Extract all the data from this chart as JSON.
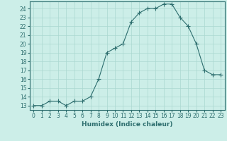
{
  "x": [
    0,
    1,
    2,
    3,
    4,
    5,
    6,
    7,
    8,
    9,
    10,
    11,
    12,
    13,
    14,
    15,
    16,
    17,
    18,
    19,
    20,
    21,
    22,
    23
  ],
  "y": [
    13,
    13,
    13.5,
    13.5,
    13,
    13.5,
    13.5,
    14,
    16,
    19,
    19.5,
    20,
    22.5,
    23.5,
    24,
    24,
    24.5,
    24.5,
    23,
    22,
    20,
    17,
    16.5,
    16.5
  ],
  "line_color": "#2d6e6e",
  "marker": "+",
  "marker_size": 4,
  "bg_color": "#cceee8",
  "grid_color": "#aad8d0",
  "xlabel": "Humidex (Indice chaleur)",
  "xlim": [
    -0.5,
    23.5
  ],
  "ylim": [
    12.5,
    24.8
  ],
  "yticks": [
    13,
    14,
    15,
    16,
    17,
    18,
    19,
    20,
    21,
    22,
    23,
    24
  ],
  "xticks": [
    0,
    1,
    2,
    3,
    4,
    5,
    6,
    7,
    8,
    9,
    10,
    11,
    12,
    13,
    14,
    15,
    16,
    17,
    18,
    19,
    20,
    21,
    22,
    23
  ],
  "tick_fontsize": 5.5,
  "xlabel_fontsize": 6.5,
  "tick_color": "#2d6e6e",
  "axis_color": "#2d6e6e",
  "spine_color": "#2d6e6e"
}
